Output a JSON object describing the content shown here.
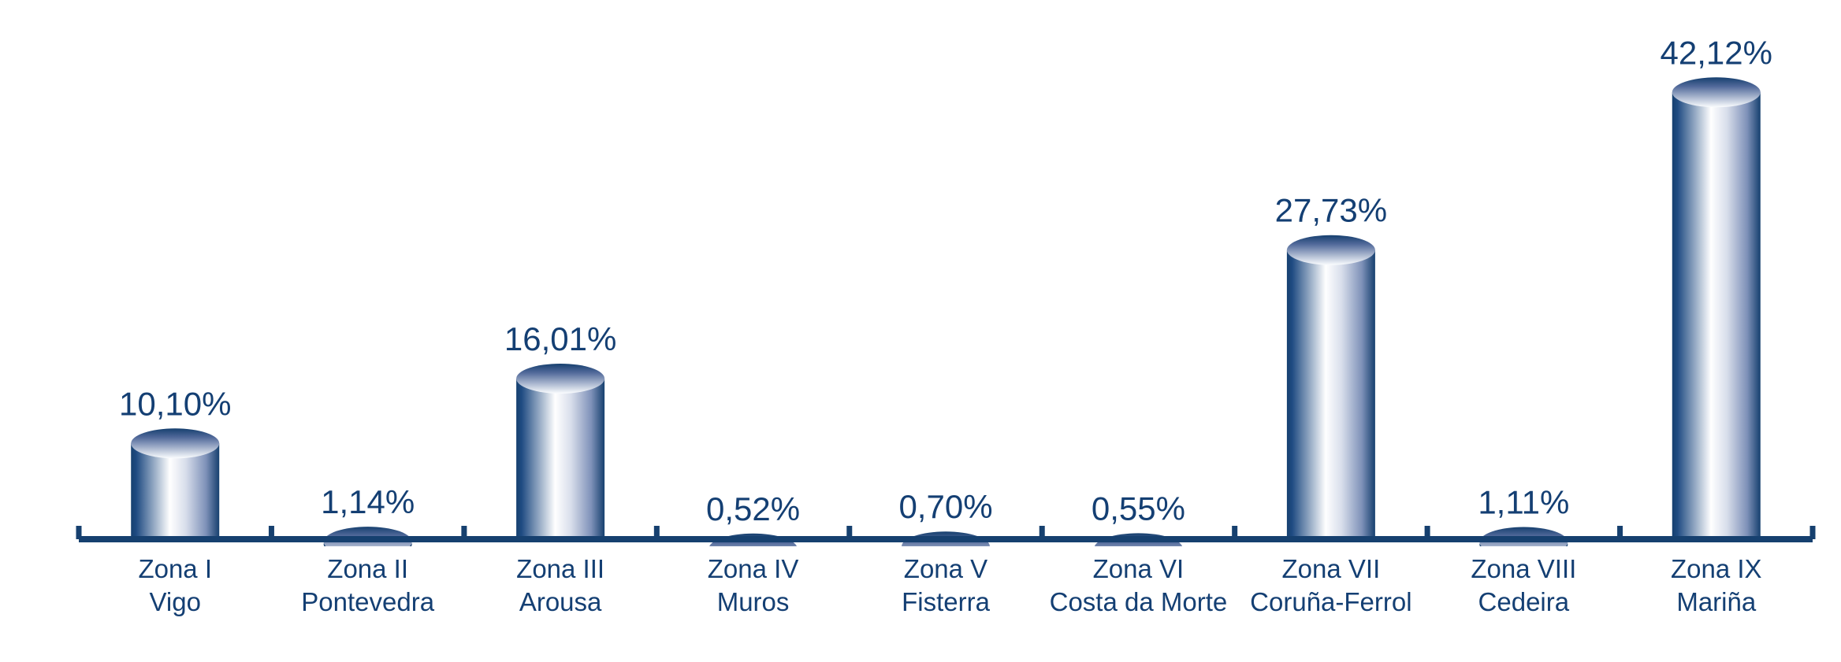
{
  "page": {
    "background": "#FFFFFF"
  },
  "chart_data": {
    "type": "bar",
    "bar_style": "3d-cylinder",
    "orientation": "vertical",
    "grid": false,
    "legend": false,
    "y_axis": "hidden",
    "x_axis": "baseline-with-category-ticks",
    "value_label_format": "percent-comma-decimal",
    "categories": [
      {
        "line1": "Zona I",
        "line2": "Vigo"
      },
      {
        "line1": "Zona II",
        "line2": "Pontevedra"
      },
      {
        "line1": "Zona III",
        "line2": "Arousa"
      },
      {
        "line1": "Zona IV",
        "line2": "Muros"
      },
      {
        "line1": "Zona V",
        "line2": "Fisterra"
      },
      {
        "line1": "Zona VI",
        "line2": "Costa da Morte"
      },
      {
        "line1": "Zona VII",
        "line2": "Coruña-Ferrol"
      },
      {
        "line1": "Zona VIII",
        "line2": "Cedeira"
      },
      {
        "line1": "Zona IX",
        "line2": "Mariña"
      }
    ],
    "values": [
      10.1,
      1.14,
      16.01,
      0.52,
      0.7,
      0.55,
      27.73,
      1.11,
      42.12
    ],
    "value_labels": [
      "10,10%",
      "1,14%",
      "16,01%",
      "0,52%",
      "0,70%",
      "0,55%",
      "27,73%",
      "1,11%",
      "42,12%"
    ],
    "colors": {
      "navy": "#16406F",
      "navy_edge_light": "#1F4B82",
      "label_text": "#143F73",
      "cylinder_highlight": "#FFFFFF",
      "cylinder_shade_mid": "#7E91B8",
      "cylinder_shade_soft": "#D8DEEB",
      "top_face_mid": "#51699A",
      "top_face_light": "#FBFDFF"
    }
  }
}
